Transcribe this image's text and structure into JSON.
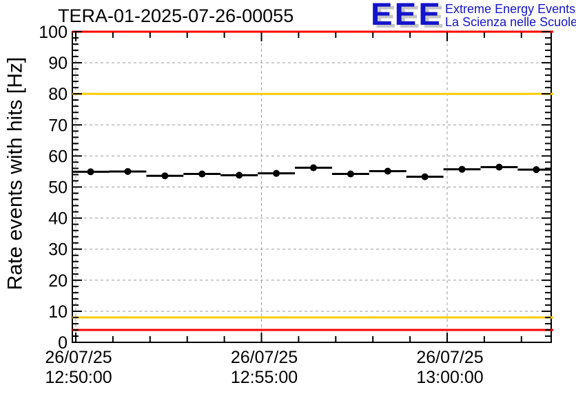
{
  "header": {
    "title": "TERA-01-2025-07-26-00055",
    "logo": {
      "acronym": "EEE",
      "tagline_line1": "Extreme Energy Events",
      "tagline_line2": "La Scienza nelle Scuole",
      "blue": "#1414cc",
      "shadow": "#c6c6c6"
    }
  },
  "chart_data": {
    "type": "scatter",
    "title": "TERA-01-2025-07-26-00055",
    "xlabel": "",
    "ylabel": "Rate events with hits [Hz]",
    "ylim": [
      0,
      100
    ],
    "y_major_ticks": [
      0,
      10,
      20,
      30,
      40,
      50,
      60,
      70,
      80,
      90,
      100
    ],
    "y_minor_tick_step": 2,
    "grid": "dashed-gray-at-major-ticks",
    "grid_color": "#999999",
    "x_reference_time": "26/07/25 12:50:00",
    "x_range_minutes": [
      -0.09,
      12.8
    ],
    "x_minor_tick_every_minutes": 1,
    "x_major_tick_every_minutes": 5,
    "x_tick_labels": [
      {
        "date": "26/07/25",
        "time": "12:50:00",
        "minutes": 0
      },
      {
        "date": "26/07/25",
        "time": "12:55:00",
        "minutes": 5
      },
      {
        "date": "26/07/25",
        "time": "13:00:00",
        "minutes": 10
      }
    ],
    "threshold_lines": [
      {
        "y": 100,
        "color": "#ff0000"
      },
      {
        "y": 80,
        "color": "#ffcc00"
      },
      {
        "y": 8,
        "color": "#ffcc00"
      },
      {
        "y": 4,
        "color": "#ff0000"
      }
    ],
    "series": [
      {
        "name": "rate-events-with-hits",
        "marker": "filled-circle",
        "color": "#000000",
        "bin_width_minutes": 1,
        "points": [
          {
            "x_minutes": 0.4,
            "y": 54.9
          },
          {
            "x_minutes": 1.4,
            "y": 55.0
          },
          {
            "x_minutes": 2.4,
            "y": 53.6
          },
          {
            "x_minutes": 3.4,
            "y": 54.2
          },
          {
            "x_minutes": 4.4,
            "y": 53.8
          },
          {
            "x_minutes": 5.4,
            "y": 54.4
          },
          {
            "x_minutes": 6.4,
            "y": 56.2
          },
          {
            "x_minutes": 7.4,
            "y": 54.2
          },
          {
            "x_minutes": 8.4,
            "y": 55.1
          },
          {
            "x_minutes": 9.4,
            "y": 53.3
          },
          {
            "x_minutes": 10.4,
            "y": 55.7
          },
          {
            "x_minutes": 11.4,
            "y": 56.4
          },
          {
            "x_minutes": 12.4,
            "y": 55.6
          }
        ]
      }
    ]
  }
}
